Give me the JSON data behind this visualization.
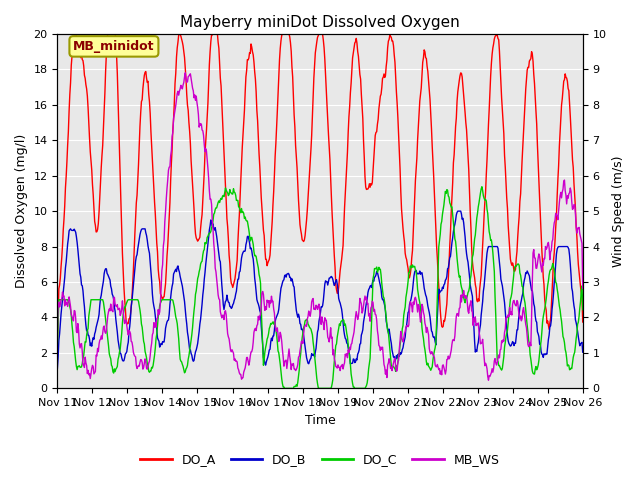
{
  "title": "Mayberry miniDot Dissolved Oxygen",
  "ylabel_left": "Dissolved Oxygen (mg/l)",
  "ylabel_right": "Wind Speed (m/s)",
  "xlabel": "Time",
  "ylim_left": [
    0,
    20
  ],
  "ylim_right": [
    0.0,
    10.0
  ],
  "yticks_left": [
    0,
    2,
    4,
    6,
    8,
    10,
    12,
    14,
    16,
    18,
    20
  ],
  "yticks_right": [
    0.0,
    1.0,
    2.0,
    3.0,
    4.0,
    5.0,
    6.0,
    7.0,
    8.0,
    9.0,
    10.0
  ],
  "xtick_labels": [
    "Nov 11",
    "Nov 12",
    "Nov 13",
    "Nov 14",
    "Nov 15",
    "Nov 16",
    "Nov 17",
    "Nov 18",
    "Nov 19",
    "Nov 20",
    "Nov 21",
    "Nov 22",
    "Nov 23",
    "Nov 24",
    "Nov 25",
    "Nov 26"
  ],
  "legend_labels": [
    "DO_A",
    "DO_B",
    "DO_C",
    "MB_WS"
  ],
  "colors": {
    "DO_A": "#ff0000",
    "DO_B": "#0000cc",
    "DO_C": "#00cc00",
    "MB_WS": "#cc00cc"
  },
  "annotation_text": "MB_minidot",
  "annotation_bbox": {
    "facecolor": "#ffff99",
    "edgecolor": "#999900"
  },
  "bg_color": "#e8e8e8",
  "linewidth": 1.0,
  "title_fontsize": 11,
  "tick_fontsize": 8,
  "label_fontsize": 9
}
